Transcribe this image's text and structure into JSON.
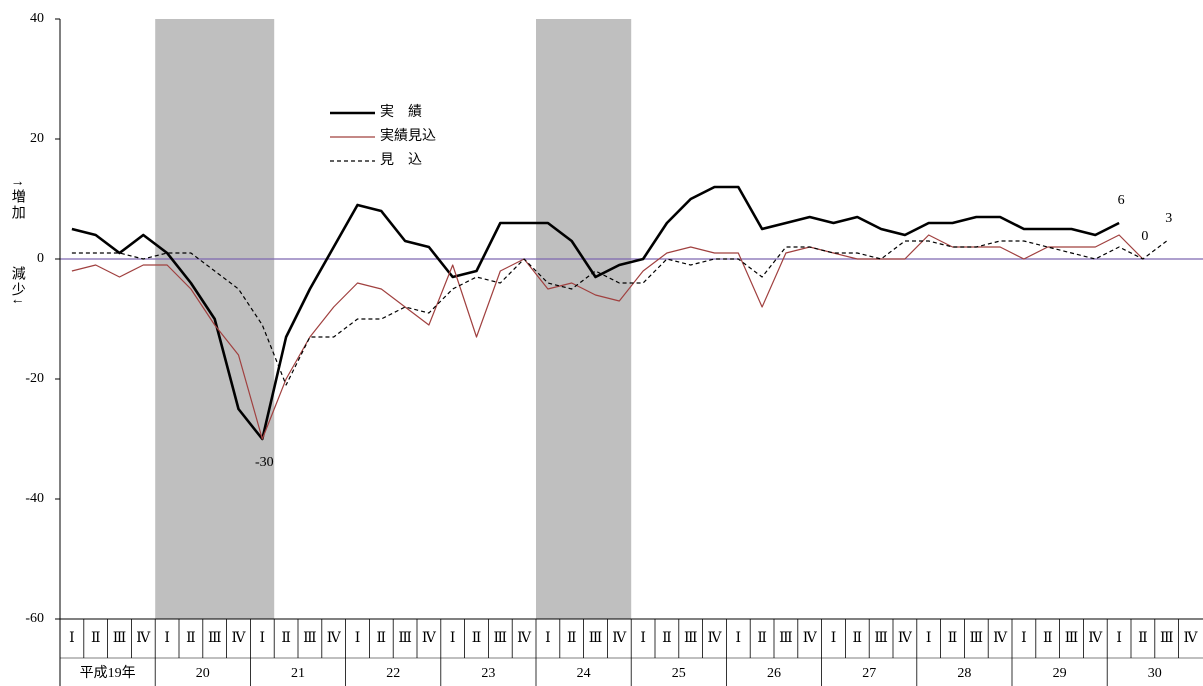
{
  "chart_data": {
    "type": "line",
    "y_label_up": "↑増加",
    "y_label_down": "減少↓",
    "categories": [
      "Ⅰ",
      "Ⅱ",
      "Ⅲ",
      "Ⅳ",
      "Ⅰ",
      "Ⅱ",
      "Ⅲ",
      "Ⅳ",
      "Ⅰ",
      "Ⅱ",
      "Ⅲ",
      "Ⅳ",
      "Ⅰ",
      "Ⅱ",
      "Ⅲ",
      "Ⅳ",
      "Ⅰ",
      "Ⅱ",
      "Ⅲ",
      "Ⅳ",
      "Ⅰ",
      "Ⅱ",
      "Ⅲ",
      "Ⅳ",
      "Ⅰ",
      "Ⅱ",
      "Ⅲ",
      "Ⅳ",
      "Ⅰ",
      "Ⅱ",
      "Ⅲ",
      "Ⅳ",
      "Ⅰ",
      "Ⅱ",
      "Ⅲ",
      "Ⅳ",
      "Ⅰ",
      "Ⅱ",
      "Ⅲ",
      "Ⅳ",
      "Ⅰ",
      "Ⅱ",
      "Ⅲ",
      "Ⅳ",
      "Ⅰ",
      "Ⅱ",
      "Ⅲ",
      "Ⅳ"
    ],
    "years": [
      "平成19年",
      "20",
      "21",
      "22",
      "23",
      "24",
      "25",
      "26",
      "27",
      "28",
      "29",
      "30"
    ],
    "shaded_quarters": [
      [
        4,
        8
      ],
      [
        20,
        23
      ]
    ],
    "ylim": [
      -60,
      40
    ],
    "yticks": [
      40,
      20,
      0,
      -20,
      -40,
      -60
    ],
    "zero_line_color": "#7e68b0",
    "series": [
      {
        "name": "実　績",
        "color": "#000000",
        "style": "solid",
        "width": 2.6,
        "label_points": [
          8,
          44
        ],
        "values": [
          5,
          4,
          1,
          4,
          1,
          -4,
          -10,
          -25,
          -30,
          -13,
          -5,
          2,
          9,
          8,
          3,
          2,
          -3,
          -2,
          6,
          6,
          6,
          3,
          -3,
          -1,
          0,
          6,
          10,
          12,
          12,
          5,
          6,
          7,
          6,
          7,
          5,
          4,
          6,
          6,
          7,
          7,
          5,
          5,
          5,
          4,
          6,
          null,
          null,
          null
        ]
      },
      {
        "name": "実績見込",
        "color": "#a0403f",
        "style": "solid",
        "width": 1.2,
        "label_points": [
          45
        ],
        "values": [
          -2,
          -1,
          -3,
          -1,
          -1,
          -5,
          -11,
          -16,
          -30,
          -20,
          -13,
          -8,
          -4,
          -5,
          -8,
          -11,
          -1,
          -13,
          -2,
          0,
          -5,
          -4,
          -6,
          -7,
          -2,
          1,
          2,
          1,
          1,
          -8,
          1,
          2,
          1,
          0,
          0,
          0,
          4,
          2,
          2,
          2,
          0,
          2,
          2,
          2,
          4,
          0,
          null,
          null
        ]
      },
      {
        "name": "見　込",
        "color": "#000000",
        "style": "dashed",
        "width": 1.2,
        "label_points": [
          46
        ],
        "values": [
          1,
          1,
          1,
          0,
          1,
          1,
          -2,
          -5,
          -11,
          -21,
          -13,
          -13,
          -10,
          -10,
          -8,
          -9,
          -5,
          -3,
          -4,
          0,
          -4,
          -5,
          -2,
          -4,
          -4,
          0,
          -1,
          0,
          0,
          -3,
          2,
          2,
          1,
          1,
          0,
          3,
          3,
          2,
          2,
          3,
          3,
          2,
          1,
          0,
          2,
          0,
          3,
          null
        ]
      }
    ]
  }
}
